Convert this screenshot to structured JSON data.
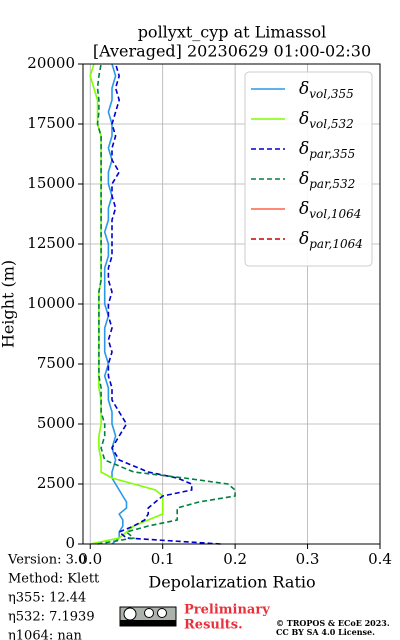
{
  "chart_data": {
    "type": "line",
    "orientation": "vertical-profile",
    "title": [
      "pollyxt_cyp at Limassol",
      "[Averaged] 20230629 01:00-02:30"
    ],
    "xlabel": "Depolarization Ratio",
    "ylabel": "Height (m)",
    "xlim": [
      -0.01,
      0.4
    ],
    "xticks": [
      {
        "value": 0,
        "label": "0.0"
      },
      0.1,
      0.2,
      0.3,
      0.4
    ],
    "ylim": [
      0,
      20000
    ],
    "yticks": [
      0,
      2500,
      5000,
      7500,
      10000,
      12500,
      15000,
      17500,
      20000
    ],
    "grid": true,
    "legend": "upper right",
    "y": [
      0,
      250,
      500,
      750,
      1000,
      1250,
      1500,
      1750,
      2000,
      2250,
      2500,
      2750,
      3000,
      3500,
      4000,
      4500,
      5000,
      5500,
      6000,
      6500,
      7000,
      7500,
      8000,
      8500,
      9000,
      9500,
      10000,
      10500,
      11000,
      11500,
      12000,
      12500,
      13000,
      13500,
      14000,
      14500,
      15000,
      15500,
      16000,
      16500,
      17000,
      17500,
      18000,
      18500,
      19000,
      19500,
      20000
    ],
    "series": [
      {
        "name": "δvol,355",
        "color": "#2a98e8",
        "dashed": false,
        "values": [
          0.03,
          0.04,
          0.04,
          0.045,
          0.045,
          0.04,
          0.05,
          0.05,
          0.045,
          0.04,
          0.035,
          0.03,
          0.03,
          0.035,
          0.03,
          0.035,
          0.03,
          0.03,
          0.025,
          0.025,
          0.02,
          0.025,
          0.02,
          0.02,
          0.02,
          0.025,
          0.02,
          0.02,
          0.02,
          0.02,
          0.025,
          0.025,
          0.02,
          0.025,
          0.025,
          0.03,
          0.025,
          0.025,
          0.03,
          0.025,
          0.03,
          0.03,
          0.025,
          0.03,
          0.03,
          0.035,
          0.03
        ]
      },
      {
        "name": "δvol,532",
        "color": "#7fff00",
        "dashed": false,
        "values": [
          0.0,
          0.04,
          0.05,
          0.06,
          0.08,
          0.1,
          0.1,
          0.1,
          0.1,
          0.09,
          0.06,
          0.03,
          0.015,
          0.015,
          0.012,
          0.012,
          0.015,
          0.015,
          0.015,
          0.012,
          0.012,
          0.012,
          0.012,
          0.012,
          0.012,
          0.012,
          0.012,
          0.012,
          0.015,
          0.015,
          0.015,
          0.015,
          0.015,
          0.015,
          0.015,
          0.015,
          0.015,
          0.015,
          0.015,
          0.015,
          0.015,
          0.01,
          0.01,
          0.01,
          0.005,
          0.0,
          0.005
        ]
      },
      {
        "name": "δpar,355",
        "color": "#0000cc",
        "dashed": true,
        "values": [
          0.18,
          0.05,
          0.04,
          0.06,
          0.075,
          0.08,
          0.08,
          0.09,
          0.1,
          0.14,
          0.14,
          0.12,
          0.08,
          0.04,
          0.03,
          0.04,
          0.05,
          0.04,
          0.03,
          0.03,
          0.025,
          0.025,
          0.03,
          0.025,
          0.03,
          0.025,
          0.025,
          0.03,
          0.025,
          0.025,
          0.03,
          0.03,
          0.03,
          0.03,
          0.035,
          0.03,
          0.03,
          0.04,
          0.03,
          0.03,
          0.035,
          0.03,
          0.035,
          0.04,
          0.035,
          0.04,
          0.035
        ]
      },
      {
        "name": "δpar,532",
        "color": "#008040",
        "dashed": true,
        "values": [
          0.01,
          0.06,
          0.05,
          0.08,
          0.12,
          0.12,
          0.12,
          0.15,
          0.2,
          0.2,
          0.19,
          0.13,
          0.06,
          0.02,
          0.015,
          0.02,
          0.02,
          0.015,
          0.015,
          0.015,
          0.012,
          0.012,
          0.012,
          0.012,
          0.012,
          0.012,
          0.012,
          0.012,
          0.015,
          0.015,
          0.015,
          0.015,
          0.015,
          0.015,
          0.015,
          0.015,
          0.015,
          0.015,
          0.015,
          0.015,
          0.015,
          0.01,
          0.012,
          0.012,
          0.01,
          0.012,
          0.015
        ]
      },
      {
        "name": "δvol,1064",
        "color": "#ff6347",
        "dashed": false,
        "values": [
          null,
          null,
          null,
          null,
          null,
          null,
          null,
          null,
          null,
          null,
          null,
          null,
          null,
          null,
          null,
          null,
          null,
          null,
          null,
          null,
          null,
          null,
          null,
          null,
          null,
          null,
          null,
          null,
          null,
          null,
          null,
          null,
          null,
          null,
          null,
          null,
          null,
          null,
          null,
          null,
          null,
          null,
          null,
          null,
          null,
          null,
          null
        ]
      },
      {
        "name": "δpar,1064",
        "color": "#cc0000",
        "dashed": true,
        "values": [
          null,
          null,
          null,
          null,
          null,
          null,
          null,
          null,
          null,
          null,
          null,
          null,
          null,
          null,
          null,
          null,
          null,
          null,
          null,
          null,
          null,
          null,
          null,
          null,
          null,
          null,
          null,
          null,
          null,
          null,
          null,
          null,
          null,
          null,
          null,
          null,
          null,
          null,
          null,
          null,
          null,
          null,
          null,
          null,
          null,
          null,
          null
        ]
      }
    ],
    "info": [
      "Version: 3.0",
      "Method: Klett",
      "η355:  12.44",
      "η532: 7.1939",
      "η1064:    nan"
    ],
    "notice": [
      "Preliminary",
      "Results."
    ],
    "copyright": [
      "© TROPOS & ECoE 2023.",
      "CC BY SA 4.0 License."
    ]
  }
}
